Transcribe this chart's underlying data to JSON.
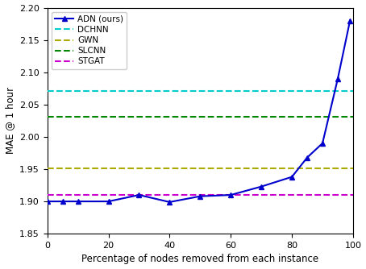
{
  "adn_x": [
    0,
    5,
    10,
    20,
    30,
    40,
    50,
    60,
    70,
    80,
    85,
    90,
    95,
    99
  ],
  "adn_y": [
    1.9,
    1.9,
    1.9,
    1.9,
    1.91,
    1.899,
    1.908,
    1.91,
    1.923,
    1.938,
    1.968,
    1.99,
    2.09,
    2.18
  ],
  "dchnn_y": 2.071,
  "gwn_y": 1.951,
  "slcnn_y": 2.031,
  "stgat_y": 1.91,
  "dchnn_color": "#00cccc",
  "gwn_color": "#aaaa00",
  "slcnn_color": "#008800",
  "stgat_color": "#cc00cc",
  "adn_color": "#0000cc",
  "xlabel": "Percentage of nodes removed from each instance",
  "ylabel": "MAE @ 1 hour",
  "xlim": [
    0,
    100
  ],
  "ylim": [
    1.85,
    2.2
  ],
  "yticks": [
    1.85,
    1.9,
    1.95,
    2.0,
    2.05,
    2.1,
    2.15,
    2.2
  ],
  "xticks": [
    0,
    20,
    40,
    60,
    80,
    100
  ]
}
